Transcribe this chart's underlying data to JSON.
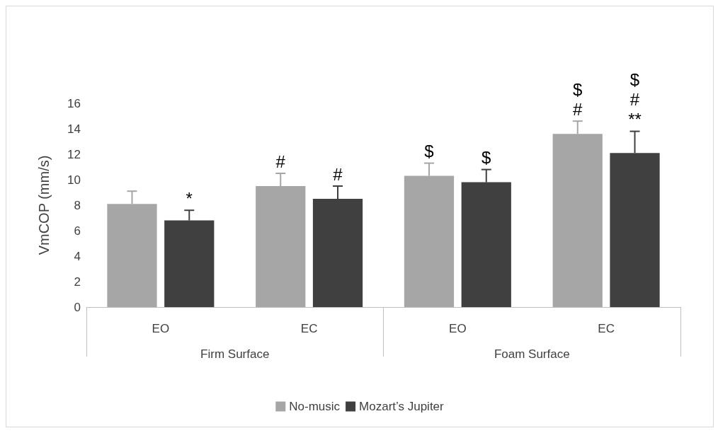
{
  "chart_data": {
    "type": "bar",
    "ylabel": "VmCOP (mm/s)",
    "categories": [
      "EO",
      "EC",
      "EO",
      "EC"
    ],
    "annotations": [
      "Firm Surface",
      "Foam Surface"
    ],
    "series": [
      {
        "name": "No-music",
        "color": "#a6a6a6",
        "values": [
          8.1,
          9.5,
          10.3,
          13.6
        ],
        "errors": [
          1.0,
          1.0,
          1.0,
          1.0
        ],
        "value_labels": [
          null,
          "#",
          "$",
          "$\n#"
        ]
      },
      {
        "name": "Mozart’s Jupiter",
        "color": "#404040",
        "values": [
          6.8,
          8.5,
          9.8,
          12.1
        ],
        "errors": [
          0.8,
          1.0,
          1.0,
          1.7
        ],
        "value_labels": [
          "*",
          "#",
          "$",
          "$\n#\n**"
        ]
      }
    ],
    "ylim": [
      0,
      16
    ],
    "yticks": [
      0,
      2,
      4,
      6,
      8,
      10,
      12,
      14,
      16
    ],
    "grid": false,
    "legend": "bottom"
  }
}
